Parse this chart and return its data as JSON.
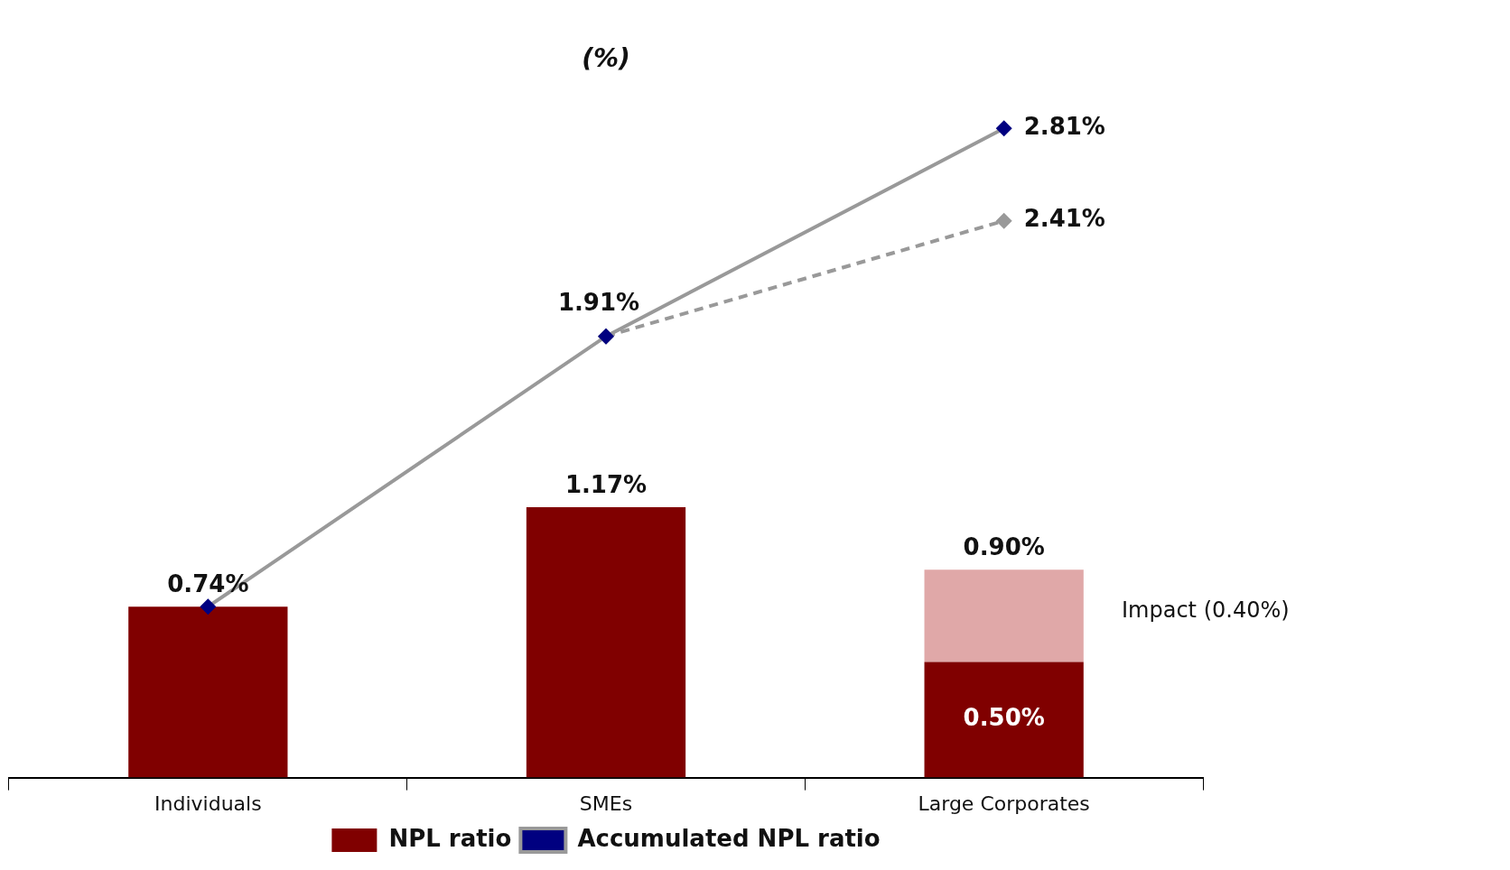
{
  "chart_data": {
    "type": "bar",
    "title": "(%)",
    "categories": [
      "Individuals",
      "SMEs",
      "Large Corporates"
    ],
    "stacked": true,
    "marker": "diamond",
    "legend": "bottom",
    "grid": false,
    "series": [
      {
        "name": "NPL ratio",
        "color": "#800000",
        "values": [
          0.74,
          1.17,
          0.5
        ],
        "value_labels": [
          null,
          null,
          "0.50%"
        ]
      },
      {
        "color": "#e0a8a8",
        "values": [
          null,
          null,
          0.4
        ]
      },
      {
        "name": "Accumulated NPL ratio",
        "type": "line",
        "color": "#999999",
        "values": [
          0.74,
          1.91,
          2.81
        ],
        "value_labels": [
          null,
          "1.91%",
          "2.81%"
        ]
      },
      {
        "type": "line",
        "color": "#999999",
        "line_style": "dashed",
        "values": [
          null,
          1.91,
          2.41
        ],
        "value_labels": [
          null,
          null,
          "2.41%"
        ]
      }
    ],
    "totals": [
      "0.74%",
      "1.17%",
      "0.90%"
    ],
    "annotations": [
      "Impact (0.40%)"
    ]
  }
}
